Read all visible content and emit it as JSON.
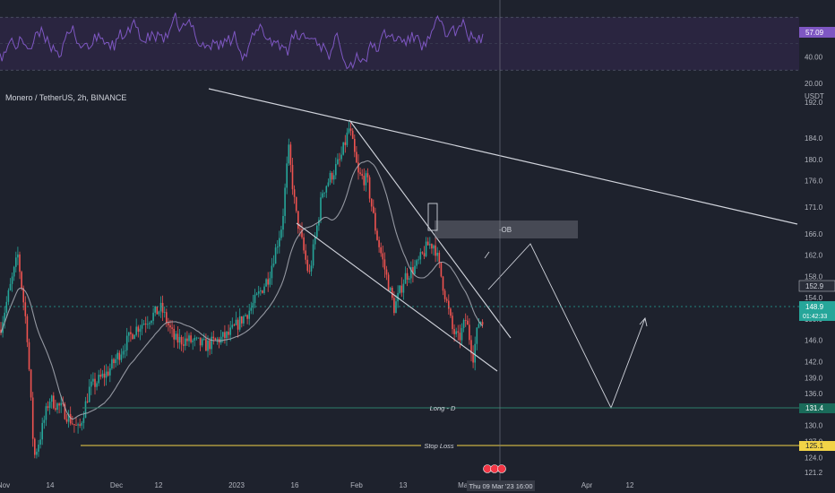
{
  "chart": {
    "title": "Monero / TetherUS, 2h, BINANCE",
    "currency": "USDT",
    "price_ticks": [
      "192.0",
      "184.0",
      "180.0",
      "176.0",
      "171.0",
      "166.0",
      "162.0",
      "158.0",
      "154.0",
      "150.0",
      "146.0",
      "142.0",
      "139.0",
      "136.0",
      "133.0",
      "130.0",
      "127.0",
      "124.0",
      "121.2"
    ],
    "rsi_ticks": [
      "60.00",
      "40.00",
      "20.00"
    ],
    "time_ticks": [
      "Nov",
      "14",
      "Dec",
      "12",
      "2023",
      "16",
      "Feb",
      "13",
      "Mar",
      "Apr",
      "12"
    ],
    "rsi_value": "57.09",
    "current_price": "148.9",
    "countdown": "01:42:33",
    "ma_price": "152.9",
    "long_level": "131.4",
    "stop_level": "125.1",
    "long_label": "Long - D",
    "stop_label": "Stop Loss",
    "ob_label": "-OB",
    "crosshair_time": "Thu 09 Mar '23  16:00"
  },
  "colors": {
    "background": "#1e222d",
    "bull": "#26a69a",
    "bear": "#ef5350",
    "rsi_line": "#7e57c2",
    "rsi_band": "#2a2540",
    "trend_line": "#d1d4dc",
    "long_line": "#2e7d6b",
    "stop_line": "#f2d347",
    "current_badge": "#26a69a"
  },
  "chart_data": {
    "type": "candlestick",
    "price_axis": [
      121.2,
      192.0
    ],
    "rsi_axis": [
      20,
      80
    ],
    "rsi_band": [
      30,
      70
    ],
    "levels": {
      "long": 131.4,
      "stop_loss": 125.1,
      "current": 148.9,
      "moving_average": 152.9
    }
  }
}
